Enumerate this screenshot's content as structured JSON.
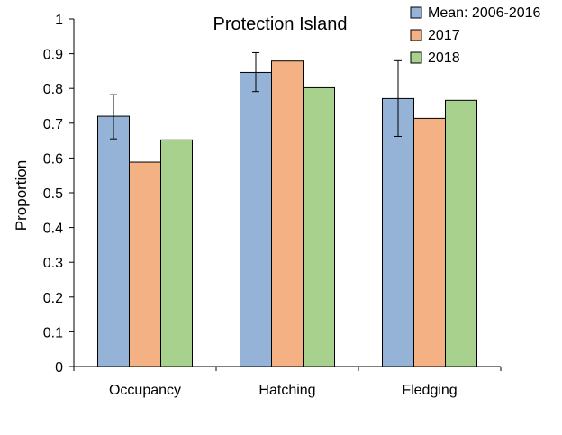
{
  "chart_data": {
    "type": "bar",
    "title": "Protection Island",
    "ylabel": "Proportion",
    "xlabel": "",
    "ylim": [
      0,
      1
    ],
    "yticks": [
      "0",
      "0.1",
      "0.2",
      "0.3",
      "0.4",
      "0.5",
      "0.6",
      "0.7",
      "0.8",
      "0.9",
      "1"
    ],
    "categories": [
      "Occupancy",
      "Hatching",
      "Fledging"
    ],
    "grid": false,
    "legend_position": "top-right",
    "series": [
      {
        "name": "Mean: 2006-2016",
        "color": "#95b3d7",
        "values": [
          0.72,
          0.846,
          0.771
        ],
        "error": [
          [
            0.655,
            0.782
          ],
          [
            0.791,
            0.903
          ],
          [
            0.662,
            0.88
          ]
        ]
      },
      {
        "name": "2017",
        "color": "#f4b183",
        "values": [
          0.588,
          0.879,
          0.714
        ]
      },
      {
        "name": "2018",
        "color": "#a9d18e",
        "values": [
          0.652,
          0.802,
          0.766
        ]
      }
    ]
  }
}
